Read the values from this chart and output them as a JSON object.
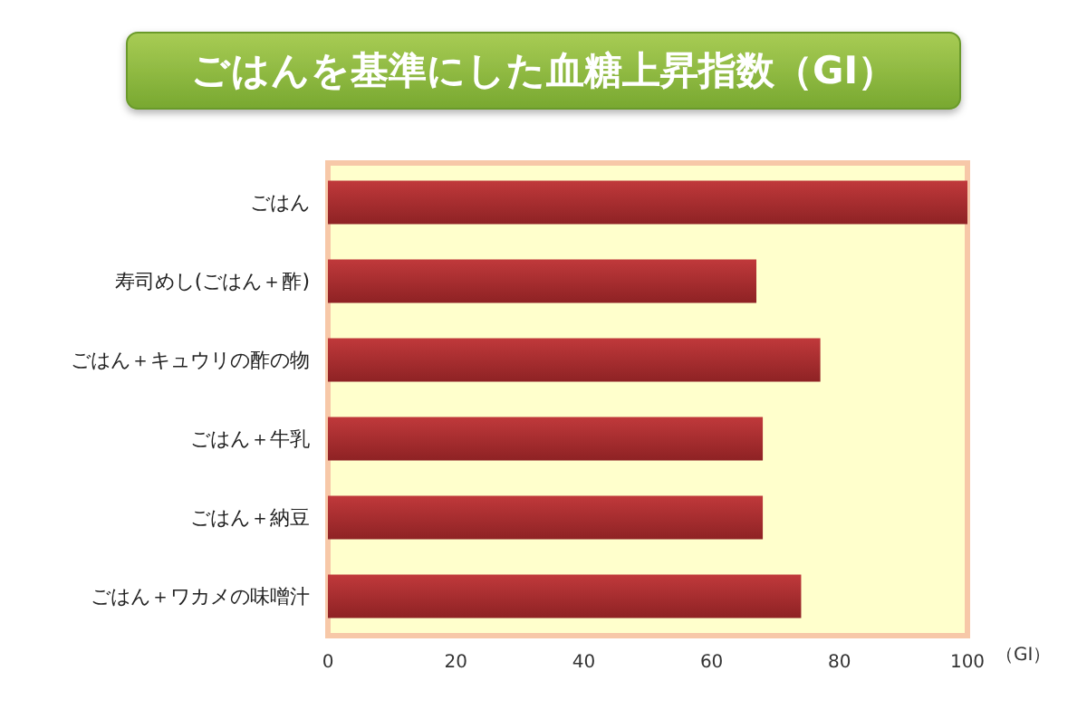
{
  "chart_data": {
    "type": "bar",
    "orientation": "horizontal",
    "title": "ごはんを基準にした血糖上昇指数（GI）",
    "xlabel": "（GI）",
    "categories": [
      "ごはん",
      "寿司めし(ごはん＋酢)",
      "ごはん＋キュウリの酢の物",
      "ごはん＋牛乳",
      "ごはん＋納豆",
      "ごはん＋ワカメの味噌汁"
    ],
    "values": [
      100,
      67,
      77,
      68,
      68,
      74
    ],
    "color": "#c0393b",
    "xlim": [
      0,
      100
    ],
    "xticks": [
      0,
      20,
      40,
      60,
      80,
      100
    ],
    "grid": false
  }
}
